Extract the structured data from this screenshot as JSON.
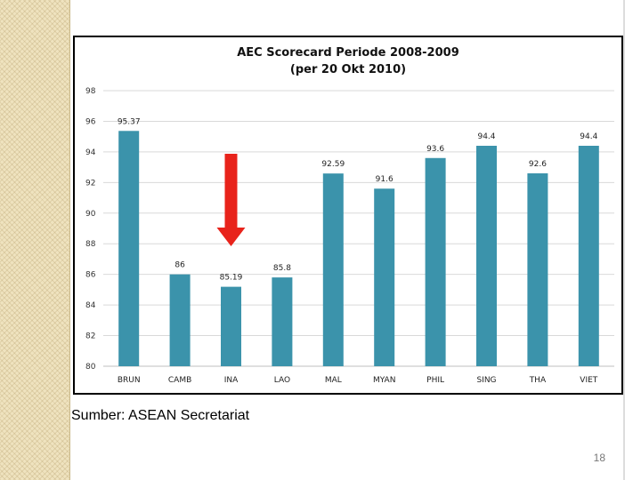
{
  "slide": {
    "source_text": "Sumber: ASEAN Secretariat",
    "page_number": "18"
  },
  "colors": {
    "bar": "#3b93ab",
    "arrow": "#e8231b",
    "grid": "#d9d9d9"
  },
  "chart_data": {
    "type": "bar",
    "title": "AEC Scorecard Periode 2008-2009",
    "subtitle": "(per 20 Okt 2010)",
    "xlabel": "",
    "ylabel": "",
    "categories": [
      "BRUN",
      "CAMB",
      "INA",
      "LAO",
      "MAL",
      "MYAN",
      "PHIL",
      "SING",
      "THA",
      "VIET"
    ],
    "values": [
      95.37,
      86,
      85.19,
      85.8,
      92.59,
      91.6,
      93.6,
      94.4,
      92.6,
      94.4
    ],
    "value_labels": [
      "95.37",
      "86",
      "85.19",
      "85.8",
      "92.59",
      "91.6",
      "93.6",
      "94.4",
      "92.6",
      "94.4"
    ],
    "ylim": [
      80,
      98
    ],
    "yticks": [
      80,
      82,
      84,
      86,
      88,
      90,
      92,
      94,
      96,
      98
    ],
    "grid": true,
    "legend": false,
    "highlight": {
      "category": "INA",
      "marker": "red-down-arrow"
    }
  }
}
